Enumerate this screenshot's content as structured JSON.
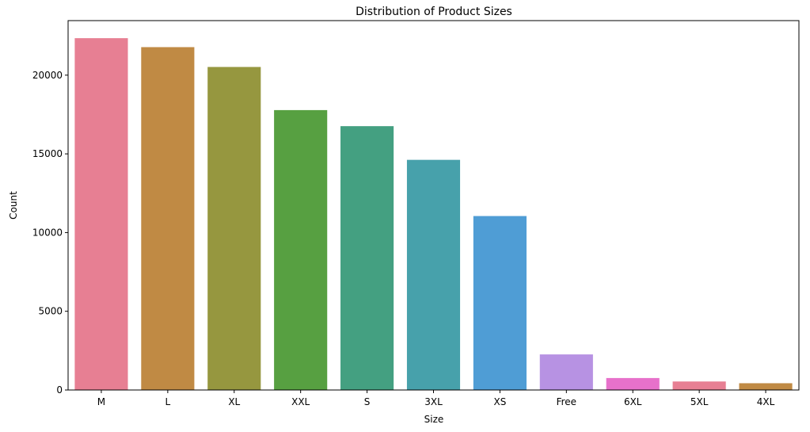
{
  "chart_data": {
    "type": "bar",
    "title": "Distribution of Product Sizes",
    "xlabel": "Size",
    "ylabel": "Count",
    "categories": [
      "M",
      "L",
      "XL",
      "XXL",
      "S",
      "3XL",
      "XS",
      "Free",
      "6XL",
      "5XL",
      "4XL"
    ],
    "values": [
      22350,
      21780,
      20520,
      17780,
      16760,
      14620,
      11050,
      2260,
      760,
      540,
      430
    ],
    "colors": [
      "#e77f93",
      "#c08a44",
      "#96973f",
      "#57a041",
      "#44a081",
      "#47a1ab",
      "#4f9dd5",
      "#b792e3",
      "#e771cb",
      "#e77f93",
      "#c08a44"
    ],
    "yticks": [
      0,
      5000,
      10000,
      15000,
      20000
    ],
    "ylim": [
      0,
      23465
    ],
    "grid": false,
    "legend": "none"
  }
}
